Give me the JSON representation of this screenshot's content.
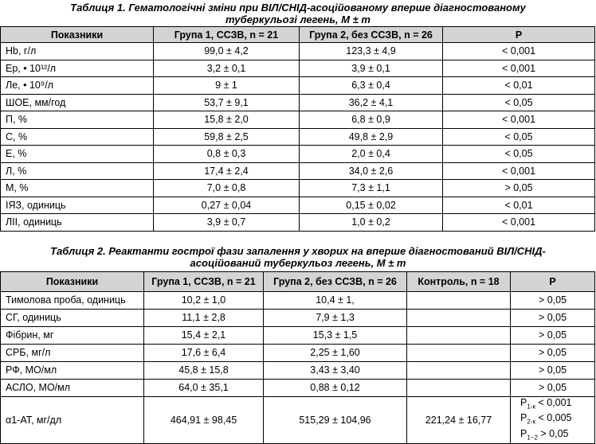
{
  "table1": {
    "title": "Таблиця 1. Гематологічні зміни при ВІЛ/СНІД-асоційованому вперше діагностованому туберкульозі легень, M ± m",
    "header": [
      "Показники",
      "Група 1, ССЗВ, n = 21",
      "Група 2, без ССЗВ, n = 26",
      "Р"
    ],
    "rows": [
      [
        "Hb, г/л",
        "99,0 ± 4,2",
        "123,3 ± 4,9",
        "< 0,001"
      ],
      [
        "Ер, • 10¹²/л",
        "3,2 ± 0,1",
        "3,9 ± 0,1",
        "< 0,001"
      ],
      [
        "Ле, • 10⁹/л",
        "9 ± 1",
        "6,3 ± 0,4",
        "< 0,01"
      ],
      [
        "ШОЕ, мм/год",
        "53,7 ± 9,1",
        "36,2 ± 4,1",
        "< 0,05"
      ],
      [
        "П, %",
        "15,8 ± 2,0",
        "6,8 ± 0,9",
        "< 0,001"
      ],
      [
        "С, %",
        "59,8 ± 2,5",
        "49,8 ± 2,9",
        "< 0,05"
      ],
      [
        "Е, %",
        "0,8 ± 0,3",
        "2,0 ± 0,4",
        "< 0,05"
      ],
      [
        "Л, %",
        "17,4 ± 2,4",
        "34,0 ± 2,6",
        "< 0,001"
      ],
      [
        "М, %",
        "7,0 ± 0,8",
        "7,3 ± 1,1",
        "> 0,05"
      ],
      [
        "ІЯЗ, одиниць",
        "0,27 ± 0,04",
        "0,15 ± 0,02",
        "< 0,01"
      ],
      [
        "ЛІІ, одиниць",
        "3,9 ± 0,7",
        "1,0 ± 0,2",
        "< 0,001"
      ]
    ]
  },
  "table2": {
    "title": "Таблиця 2. Реактанти гострої фази запалення у хворих на вперше діагностований ВІЛ/СНІД-асоційований туберкульоз легень, M ± m",
    "header": [
      "Показники",
      "Група 1, ССЗВ, n = 21",
      "Група 2, без ССЗВ, n = 26",
      "Контроль, n = 18",
      "Р"
    ],
    "rows": [
      [
        "Тимолова проба, одиниць",
        "10,2 ± 1,0",
        "10,4 ± 1,",
        null,
        "> 0,05"
      ],
      [
        "СГ, одиниць",
        "11,1 ± 2,8",
        "7,9 ± 1,3",
        null,
        "> 0,05"
      ],
      [
        "Фібрин, мг",
        "15,4 ± 2,1",
        "15,3 ± 1,5",
        null,
        "> 0,05"
      ],
      [
        "СРБ, мг/л",
        "17,6 ± 6,4",
        "2,25 ± 1,60",
        null,
        "> 0,05"
      ],
      [
        "РФ, МО/мл",
        "45,8 ± 15,8",
        "3,43 ± 3,40",
        null,
        "> 0,05"
      ],
      [
        "АСЛО, МО/мл",
        "64,0 ± 35,1",
        "0,88 ± 0,12",
        null,
        "> 0,05"
      ],
      [
        "α1-АТ, мг/дл",
        "464,91 ± 98,45",
        "515,29 ± 104,96",
        "221,24 ± 16,77",
        [
          {
            "symbol": "P",
            "sub": "1-к",
            "text": "< 0,001"
          },
          {
            "symbol": "P",
            "sub": "2-к",
            "text": "< 0,005"
          },
          {
            "symbol": "P",
            "sub": "1−2",
            "text": "> 0,05"
          }
        ]
      ]
    ]
  }
}
